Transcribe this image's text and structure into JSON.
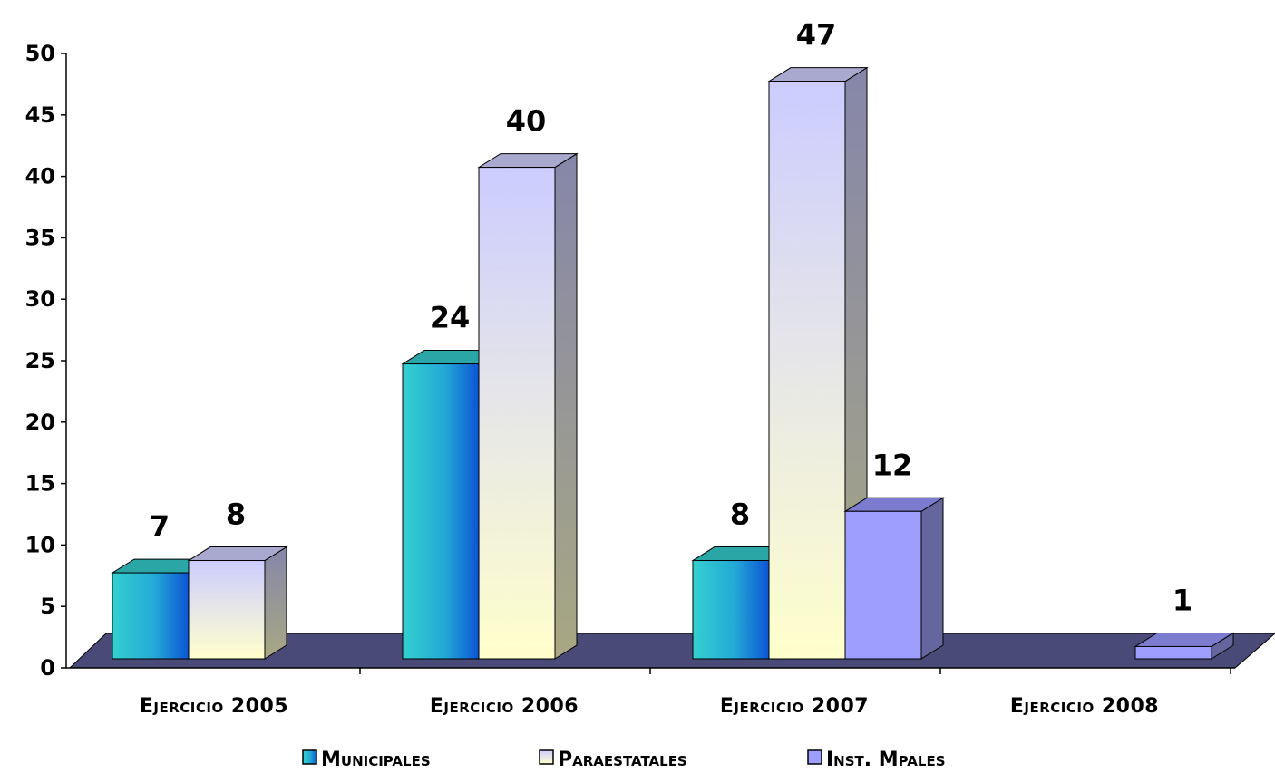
{
  "chart_data": {
    "type": "bar",
    "title": "",
    "xlabel": "",
    "ylabel": "",
    "ylim": [
      0,
      50
    ],
    "yticks": [
      0,
      5,
      10,
      15,
      20,
      25,
      30,
      35,
      40,
      45,
      50
    ],
    "categories": [
      "Ejercicio 2005",
      "Ejercicio 2006",
      "Ejercicio 2007",
      "Ejercicio 2008"
    ],
    "series": [
      {
        "name": "Municipales",
        "values": [
          7,
          24,
          8,
          null
        ],
        "color": "#1a9fd0"
      },
      {
        "name": "Paraestatales",
        "values": [
          8,
          40,
          47,
          null
        ],
        "color": "#fdfcd0"
      },
      {
        "name": "Inst. Mpales",
        "values": [
          null,
          null,
          12,
          1
        ],
        "color": "#9b9bff"
      }
    ],
    "legend_position": "bottom",
    "grid": false,
    "floor_color": "#4a4a78",
    "style": "3d-column"
  }
}
